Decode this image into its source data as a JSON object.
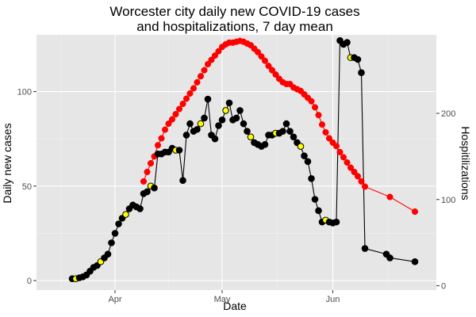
{
  "chart_data": {
    "type": "line",
    "title_lines": [
      "Worcester city daily new COVID-19 cases",
      "and hospitalizations, 7 day mean"
    ],
    "xlabel": "Date",
    "ylabel": "Daily new cases",
    "y2label": "Hospitilizations",
    "xlim": [
      "2020-03-10",
      "2020-06-30"
    ],
    "ylim": [
      -5,
      130
    ],
    "y2lim": [
      -5,
      291
    ],
    "x_ticks": [
      {
        "date": "2020-04-01",
        "label": "Apr"
      },
      {
        "date": "2020-05-01",
        "label": "May"
      },
      {
        "date": "2020-06-01",
        "label": "Jun"
      }
    ],
    "y_ticks": [
      0,
      50,
      100
    ],
    "y2_ticks": [
      0,
      100,
      200
    ],
    "grid": true,
    "colors": {
      "panel": "#e6e6e6",
      "grid_major": "#ffffff",
      "grid_minor": "#f1f1f1",
      "cases": "#000000",
      "hospitalizations": "#ff0000",
      "highlight": "#ffff00"
    },
    "series": [
      {
        "axis": "left",
        "color": "#000000",
        "points": [
          [
            "2020-03-20",
            1
          ],
          [
            "2020-03-21",
            1
          ],
          [
            "2020-03-22",
            1.5
          ],
          [
            "2020-03-23",
            2
          ],
          [
            "2020-03-24",
            3
          ],
          [
            "2020-03-25",
            5
          ],
          [
            "2020-03-26",
            7
          ],
          [
            "2020-03-27",
            8
          ],
          [
            "2020-03-28",
            10
          ],
          [
            "2020-03-29",
            12
          ],
          [
            "2020-03-30",
            14
          ],
          [
            "2020-03-31",
            20
          ],
          [
            "2020-04-01",
            25
          ],
          [
            "2020-04-02",
            30
          ],
          [
            "2020-04-03",
            33
          ],
          [
            "2020-04-04",
            35
          ],
          [
            "2020-04-05",
            38
          ],
          [
            "2020-04-06",
            40
          ],
          [
            "2020-04-07",
            39
          ],
          [
            "2020-04-08",
            38
          ],
          [
            "2020-04-09",
            46
          ],
          [
            "2020-04-10",
            47
          ],
          [
            "2020-04-11",
            50
          ],
          [
            "2020-04-12",
            49
          ],
          [
            "2020-04-13",
            67
          ],
          [
            "2020-04-14",
            67
          ],
          [
            "2020-04-15",
            68
          ],
          [
            "2020-04-16",
            68
          ],
          [
            "2020-04-17",
            70
          ],
          [
            "2020-04-18",
            69
          ],
          [
            "2020-04-19",
            69
          ],
          [
            "2020-04-20",
            53
          ],
          [
            "2020-04-21",
            77
          ],
          [
            "2020-04-22",
            83
          ],
          [
            "2020-04-23",
            79
          ],
          [
            "2020-04-24",
            80
          ],
          [
            "2020-04-25",
            83
          ],
          [
            "2020-04-26",
            86
          ],
          [
            "2020-04-27",
            96
          ],
          [
            "2020-04-28",
            77
          ],
          [
            "2020-04-29",
            75
          ],
          [
            "2020-04-30",
            82
          ],
          [
            "2020-05-01",
            85
          ],
          [
            "2020-05-02",
            90
          ],
          [
            "2020-05-03",
            94
          ],
          [
            "2020-05-04",
            85
          ],
          [
            "2020-05-05",
            86
          ],
          [
            "2020-05-06",
            90
          ],
          [
            "2020-05-07",
            83
          ],
          [
            "2020-05-08",
            79
          ],
          [
            "2020-05-09",
            76
          ],
          [
            "2020-05-10",
            73
          ],
          [
            "2020-05-11",
            72
          ],
          [
            "2020-05-12",
            71
          ],
          [
            "2020-05-13",
            72
          ],
          [
            "2020-05-14",
            77
          ],
          [
            "2020-05-15",
            77
          ],
          [
            "2020-05-16",
            78
          ],
          [
            "2020-05-17",
            78
          ],
          [
            "2020-05-18",
            79
          ],
          [
            "2020-05-19",
            83
          ],
          [
            "2020-05-20",
            79
          ],
          [
            "2020-05-21",
            76
          ],
          [
            "2020-05-22",
            73
          ],
          [
            "2020-05-23",
            71
          ],
          [
            "2020-05-24",
            66
          ],
          [
            "2020-05-25",
            63
          ],
          [
            "2020-05-26",
            54
          ],
          [
            "2020-05-27",
            43
          ],
          [
            "2020-05-28",
            37
          ],
          [
            "2020-05-29",
            31
          ],
          [
            "2020-05-30",
            32
          ],
          [
            "2020-05-31",
            31
          ],
          [
            "2020-06-01",
            30.5
          ],
          [
            "2020-06-02",
            31
          ],
          [
            "2020-06-03",
            127
          ],
          [
            "2020-06-04",
            125
          ],
          [
            "2020-06-05",
            126
          ],
          [
            "2020-06-06",
            118
          ],
          [
            "2020-06-07",
            118
          ],
          [
            "2020-06-08",
            117
          ],
          [
            "2020-06-09",
            110
          ],
          [
            "2020-06-10",
            17
          ],
          [
            "2020-06-16",
            14
          ],
          [
            "2020-06-17",
            12
          ],
          [
            "2020-06-24",
            10
          ]
        ]
      },
      {
        "axis": "right",
        "color": "#ff0000",
        "points": [
          [
            "2020-04-09",
            121
          ],
          [
            "2020-04-10",
            132
          ],
          [
            "2020-04-11",
            142
          ],
          [
            "2020-04-12",
            150
          ],
          [
            "2020-04-13",
            163
          ],
          [
            "2020-04-14",
            171
          ],
          [
            "2020-04-15",
            181
          ],
          [
            "2020-04-16",
            188
          ],
          [
            "2020-04-17",
            193
          ],
          [
            "2020-04-18",
            199
          ],
          [
            "2020-04-19",
            205
          ],
          [
            "2020-04-20",
            211
          ],
          [
            "2020-04-21",
            217
          ],
          [
            "2020-04-22",
            223
          ],
          [
            "2020-04-23",
            229
          ],
          [
            "2020-04-24",
            236
          ],
          [
            "2020-04-25",
            243
          ],
          [
            "2020-04-26",
            250
          ],
          [
            "2020-04-27",
            257
          ],
          [
            "2020-04-28",
            262
          ],
          [
            "2020-04-29",
            267
          ],
          [
            "2020-04-30",
            272
          ],
          [
            "2020-05-01",
            277
          ],
          [
            "2020-05-02",
            280
          ],
          [
            "2020-05-03",
            282
          ],
          [
            "2020-05-04",
            282
          ],
          [
            "2020-05-05",
            283
          ],
          [
            "2020-05-06",
            284
          ],
          [
            "2020-05-07",
            283
          ],
          [
            "2020-05-08",
            281
          ],
          [
            "2020-05-09",
            279
          ],
          [
            "2020-05-10",
            275
          ],
          [
            "2020-05-11",
            271
          ],
          [
            "2020-05-12",
            266
          ],
          [
            "2020-05-13",
            261
          ],
          [
            "2020-05-14",
            255
          ],
          [
            "2020-05-15",
            250
          ],
          [
            "2020-05-16",
            245
          ],
          [
            "2020-05-17",
            240
          ],
          [
            "2020-05-18",
            236
          ],
          [
            "2020-05-19",
            234
          ],
          [
            "2020-05-20",
            234
          ],
          [
            "2020-05-21",
            230
          ],
          [
            "2020-05-22",
            228
          ],
          [
            "2020-05-23",
            226
          ],
          [
            "2020-05-24",
            222
          ],
          [
            "2020-05-25",
            218
          ],
          [
            "2020-05-26",
            214
          ],
          [
            "2020-05-27",
            207
          ],
          [
            "2020-05-28",
            198
          ],
          [
            "2020-05-29",
            187
          ],
          [
            "2020-05-30",
            178
          ],
          [
            "2020-05-31",
            171
          ],
          [
            "2020-06-01",
            166
          ],
          [
            "2020-06-02",
            162
          ],
          [
            "2020-06-03",
            155
          ],
          [
            "2020-06-04",
            149
          ],
          [
            "2020-06-05",
            143
          ],
          [
            "2020-06-06",
            137
          ],
          [
            "2020-06-07",
            132
          ],
          [
            "2020-06-08",
            127
          ],
          [
            "2020-06-09",
            121
          ],
          [
            "2020-06-10",
            115
          ],
          [
            "2020-06-17",
            103
          ],
          [
            "2020-06-24",
            86
          ]
        ]
      }
    ],
    "highlighted_case_points": [
      [
        "2020-03-21",
        1
      ],
      [
        "2020-03-28",
        10
      ],
      [
        "2020-04-04",
        35
      ],
      [
        "2020-04-11",
        50
      ],
      [
        "2020-04-18",
        69
      ],
      [
        "2020-04-25",
        83
      ],
      [
        "2020-05-02",
        90
      ],
      [
        "2020-05-09",
        76
      ],
      [
        "2020-05-16",
        78
      ],
      [
        "2020-05-23",
        71
      ],
      [
        "2020-05-30",
        32
      ],
      [
        "2020-06-06",
        118
      ]
    ]
  }
}
